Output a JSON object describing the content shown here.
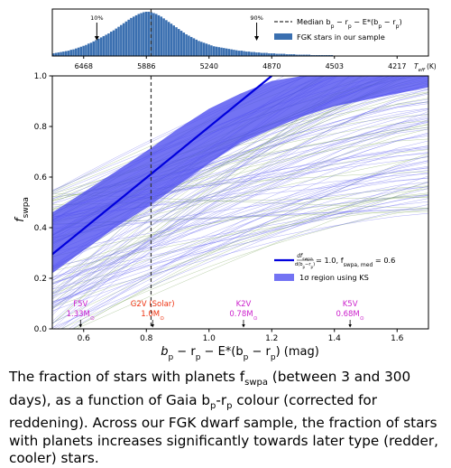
{
  "chart_data": [
    {
      "type": "bar",
      "panel": "top histogram",
      "xlim": [
        0.5,
        1.7
      ],
      "top_axis_ticks": [
        "6468",
        "5886",
        "5240",
        "4870",
        "4503",
        "4217"
      ],
      "top_axis_tick_x": [
        0.6,
        0.8,
        1.0,
        1.2,
        1.4,
        1.6
      ],
      "top_axis_label": "T",
      "top_axis_label_sub": "eff",
      "top_axis_unit": "(K)",
      "median": 0.815,
      "p10": 0.642,
      "p90": 1.152,
      "p10_label": "10%",
      "p90_label": "90%",
      "legend": {
        "median_label": "Median b",
        "median_label_tail": " − r",
        "median_label_rest": " − E*(b",
        "median_label_end": " − r",
        "sample_label": "FGK stars in our sample"
      },
      "bins_start": 0.5,
      "bin_width": 0.008,
      "counts": [
        0.06,
        0.07,
        0.08,
        0.09,
        0.1,
        0.11,
        0.12,
        0.14,
        0.15,
        0.17,
        0.19,
        0.21,
        0.23,
        0.25,
        0.28,
        0.3,
        0.33,
        0.36,
        0.39,
        0.42,
        0.45,
        0.48,
        0.51,
        0.55,
        0.58,
        0.62,
        0.66,
        0.7,
        0.74,
        0.78,
        0.82,
        0.86,
        0.89,
        0.92,
        0.95,
        0.97,
        0.99,
        1.0,
        1.0,
        0.99,
        0.97,
        0.95,
        0.92,
        0.89,
        0.85,
        0.81,
        0.77,
        0.73,
        0.69,
        0.65,
        0.61,
        0.57,
        0.53,
        0.49,
        0.46,
        0.43,
        0.4,
        0.37,
        0.34,
        0.32,
        0.3,
        0.28,
        0.26,
        0.24,
        0.22,
        0.21,
        0.2,
        0.19,
        0.18,
        0.17,
        0.16,
        0.15,
        0.14,
        0.13,
        0.12,
        0.12,
        0.11,
        0.1,
        0.1,
        0.09,
        0.09,
        0.08,
        0.08,
        0.07,
        0.07,
        0.07,
        0.06,
        0.06,
        0.06,
        0.05,
        0.05,
        0.05,
        0.05,
        0.04,
        0.04,
        0.04,
        0.04,
        0.03,
        0.03,
        0.03,
        0.03,
        0.03,
        0.03,
        0.02,
        0.02,
        0.02,
        0.02,
        0.02,
        0.02,
        0.02,
        0.02,
        0.02,
        0.01,
        0.01,
        0.01,
        0.01,
        0.01,
        0.01,
        0.01,
        0.01,
        0.01,
        0.01,
        0.01,
        0.01,
        0.01,
        0.01,
        0.01,
        0.01,
        0.01,
        0.01,
        0.01,
        0.01,
        0.01,
        0.01,
        0.01,
        0.01,
        0.01,
        0.01,
        0.01,
        0.01,
        0.01,
        0.01,
        0.01,
        0.01,
        0.01,
        0.01,
        0.01,
        0.01
      ]
    },
    {
      "type": "line",
      "panel": "main",
      "xlim": [
        0.5,
        1.7
      ],
      "ylim": [
        0.0,
        1.0
      ],
      "xticks": [
        "0.6",
        "0.8",
        "1.0",
        "1.2",
        "1.4",
        "1.6"
      ],
      "xtick_values": [
        0.6,
        0.8,
        1.0,
        1.2,
        1.4,
        1.6
      ],
      "yticks": [
        "0.0",
        "0.2",
        "0.4",
        "0.6",
        "0.8",
        "1.0"
      ],
      "ytick_values": [
        0.0,
        0.2,
        0.4,
        0.6,
        0.8,
        1.0
      ],
      "xlabel": "b",
      "xlabel_rest": " − r",
      "xlabel_mid": " − E*(b",
      "xlabel_end": " − r",
      "xlabel_unit": ") (mag)",
      "ylabel": "f",
      "ylabel_sub": "swpa",
      "median": 0.815,
      "trend_line": {
        "x": [
          0.5,
          1.2
        ],
        "y": [
          0.295,
          1.0
        ]
      },
      "band_upper": {
        "x": [
          0.5,
          0.6,
          0.7,
          0.815,
          0.9,
          1.0,
          1.1,
          1.2,
          1.3,
          1.4,
          1.5,
          1.6,
          1.7
        ],
        "y": [
          0.46,
          0.54,
          0.62,
          0.715,
          0.79,
          0.87,
          0.93,
          0.98,
          1.0,
          1.0,
          1.0,
          1.0,
          1.0
        ]
      },
      "band_lower": {
        "x": [
          0.5,
          0.6,
          0.7,
          0.815,
          0.9,
          1.0,
          1.1,
          1.2,
          1.3,
          1.4,
          1.5,
          1.6,
          1.7
        ],
        "y": [
          0.22,
          0.31,
          0.4,
          0.49,
          0.565,
          0.655,
          0.735,
          0.79,
          0.84,
          0.88,
          0.905,
          0.93,
          0.955
        ]
      },
      "legend": {
        "line_label_num": "df",
        "line_label_num_sub": "swpa",
        "line_label_den": "d(b",
        "line_label_den_rest": "−r",
        "line_label_den_end": ")",
        "line_label_tail": " = 1.0, f",
        "line_label_tail_sub": "swpa, med",
        "line_label_end": " = 0.6",
        "band_label": "1σ region using KS"
      },
      "spectral_annotations": [
        {
          "type": "F5V",
          "mass": "1.33M",
          "x": 0.59,
          "color": "#cc22cc"
        },
        {
          "type": "G2V (Solar)",
          "mass": "1.0M",
          "x": 0.82,
          "color": "#ee3311"
        },
        {
          "type": "K2V",
          "mass": "0.78M",
          "x": 1.11,
          "color": "#cc22cc"
        },
        {
          "type": "K5V",
          "mass": "0.68M",
          "x": 1.45,
          "color": "#cc22cc"
        }
      ],
      "mass_symbol": "⊙",
      "colors": {
        "band": "#4b4bf0",
        "trend": "#0000dd",
        "hist": "#3a6fb0",
        "median": "#333333"
      }
    }
  ],
  "caption": {
    "part1": "The fraction of stars with planets f",
    "sub1": "swpa",
    "part2": " (between 3 and 300 days), as a function of Gaia b",
    "sub2": "p",
    "part3": "-r",
    "sub3": "p",
    "part4": " colour (corrected for reddening). Across our FGK dwarf sample, the fraction of stars with planets increases significantly towards later type (redder, cooler) stars."
  }
}
